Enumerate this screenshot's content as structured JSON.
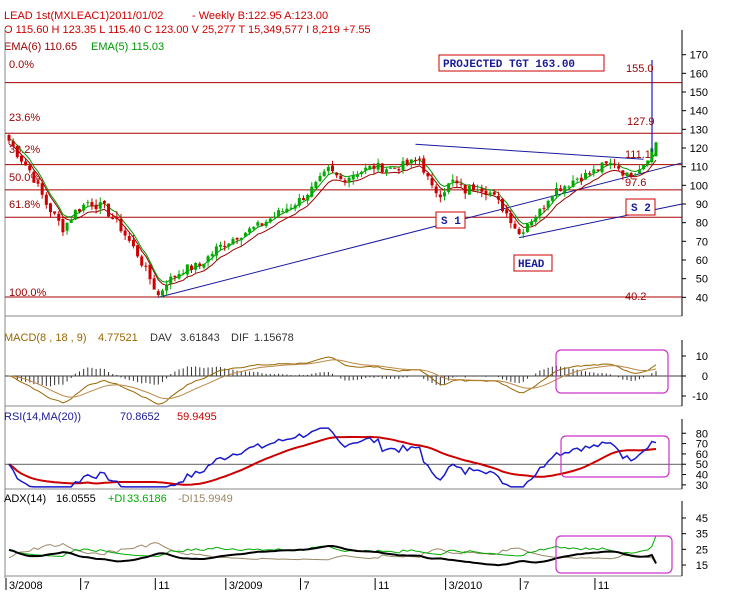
{
  "header": {
    "title": "LEAD 1st(MXLEAC1)2011/01/02",
    "bid_ask": "- Weekly B:122.95 A:123.00",
    "ohlc": "O 115.60 H 123.35 L 115.40 C 123.00 V 25,277 T 15,349,577 I 8,219  +7.55",
    "ema6_label": "EMA(6) 110.65",
    "ema5_label": "EMA(5) 115.03"
  },
  "annotations": {
    "projected": "PROJECTED TGT 163.00",
    "s1": "S 1",
    "s2": "S 2",
    "head": "HEAD",
    "level_155": "155.0",
    "level_127": "127.9",
    "level_111": "111.1",
    "level_97": "97.6",
    "level_40": "40.2"
  },
  "fib_labels": [
    "0.0%",
    "23.6%",
    "38.2%",
    "50.0%",
    "61.8%",
    "100.0%"
  ],
  "panels": {
    "macd": {
      "label": "MACD(8 , 18 , 9)",
      "v1": "4.77521",
      "dav": "DAV",
      "v2": "3.61843",
      "dif": "DIF",
      "v3": "1.15678"
    },
    "rsi": {
      "label": "RSI(14,MA(20))",
      "v1": "70.8652",
      "v2": "59.9495"
    },
    "adx": {
      "label": "ADX(14)",
      "v1": "16.0555",
      "pdi": "+DI",
      "v2": "33.6186",
      "mdi": "-DI",
      "v3": "15.9949"
    }
  },
  "x_axis_labels": [
    "3/2008",
    "7",
    "11",
    "3/2009",
    "7",
    "11",
    "3/2010",
    "7",
    "11"
  ],
  "colors": {
    "up": "#00aa00",
    "down": "#cc0000",
    "ema6": "#990000",
    "ema5": "#009900",
    "fib": "#aa0000",
    "trend": "#1a1aa0",
    "box": "#cc33cc",
    "macd": "#996600",
    "dif_hist": "#333333",
    "rsi": "#1a1acc",
    "rsi_ma": "#cc0000",
    "adx": "#000000",
    "pdi": "#00aa00",
    "mdi": "#998866"
  },
  "chart_data": [
    {
      "type": "candlestick",
      "title": "LEAD 1st(MXLEAC1) Weekly",
      "ylim": [
        30,
        180
      ],
      "yticks": [
        40,
        50,
        60,
        70,
        80,
        90,
        100,
        110,
        120,
        130,
        140,
        150,
        160,
        170
      ],
      "fib_levels": [
        155.0,
        127.9,
        111.1,
        97.6,
        82.9,
        40.2
      ],
      "anchors": [
        [
          0,
          124
        ],
        [
          2,
          117
        ],
        [
          5,
          108
        ],
        [
          9,
          90
        ],
        [
          13,
          77
        ],
        [
          16,
          86
        ],
        [
          19,
          91
        ],
        [
          23,
          88
        ],
        [
          27,
          77
        ],
        [
          31,
          63
        ],
        [
          34,
          50
        ],
        [
          36,
          41
        ],
        [
          38,
          48
        ],
        [
          42,
          55
        ],
        [
          46,
          57
        ],
        [
          50,
          66
        ],
        [
          55,
          73
        ],
        [
          60,
          78
        ],
        [
          65,
          85
        ],
        [
          70,
          92
        ],
        [
          74,
          100
        ],
        [
          77,
          108
        ],
        [
          80,
          103
        ],
        [
          84,
          107
        ],
        [
          88,
          110
        ],
        [
          92,
          109
        ],
        [
          96,
          111
        ],
        [
          99,
          114
        ],
        [
          102,
          98
        ],
        [
          104,
          96
        ],
        [
          107,
          102
        ],
        [
          110,
          97
        ],
        [
          113,
          100
        ],
        [
          116,
          96
        ],
        [
          119,
          88
        ],
        [
          121,
          82
        ],
        [
          123,
          74
        ],
        [
          125,
          80
        ],
        [
          128,
          86
        ],
        [
          131,
          97
        ],
        [
          134,
          100
        ],
        [
          137,
          104
        ],
        [
          140,
          106
        ],
        [
          143,
          110
        ],
        [
          146,
          112
        ],
        [
          149,
          105
        ],
        [
          151,
          108
        ],
        [
          153,
          112
        ],
        [
          156,
          123
        ]
      ],
      "last": {
        "open": 115.6,
        "high": 123.35,
        "low": 115.4,
        "close": 123.0
      },
      "ema6": 110.65,
      "ema5": 115.03
    },
    {
      "type": "line",
      "title": "MACD(8 , 18 , 9)",
      "ylim": [
        -15,
        15
      ],
      "yticks": [
        10,
        0,
        -10
      ],
      "series": [
        {
          "name": "MACD",
          "last": 4.77521
        },
        {
          "name": "DAV",
          "last": 3.61843
        },
        {
          "name": "DIF",
          "last": 1.15678
        }
      ]
    },
    {
      "type": "line",
      "title": "RSI(14,MA(20))",
      "ylim": [
        26,
        88
      ],
      "yticks": [
        80,
        70,
        60,
        50,
        40,
        30
      ],
      "series": [
        {
          "name": "RSI",
          "last": 70.8652
        },
        {
          "name": "MA(20)",
          "last": 59.9495
        }
      ]
    },
    {
      "type": "line",
      "title": "ADX(14)",
      "ylim": [
        8,
        52
      ],
      "yticks": [
        45,
        35,
        25,
        15
      ],
      "series": [
        {
          "name": "ADX",
          "last": 16.0555
        },
        {
          "name": "+DI",
          "last": 33.6186
        },
        {
          "name": "-DI",
          "last": 15.9949
        }
      ]
    }
  ]
}
